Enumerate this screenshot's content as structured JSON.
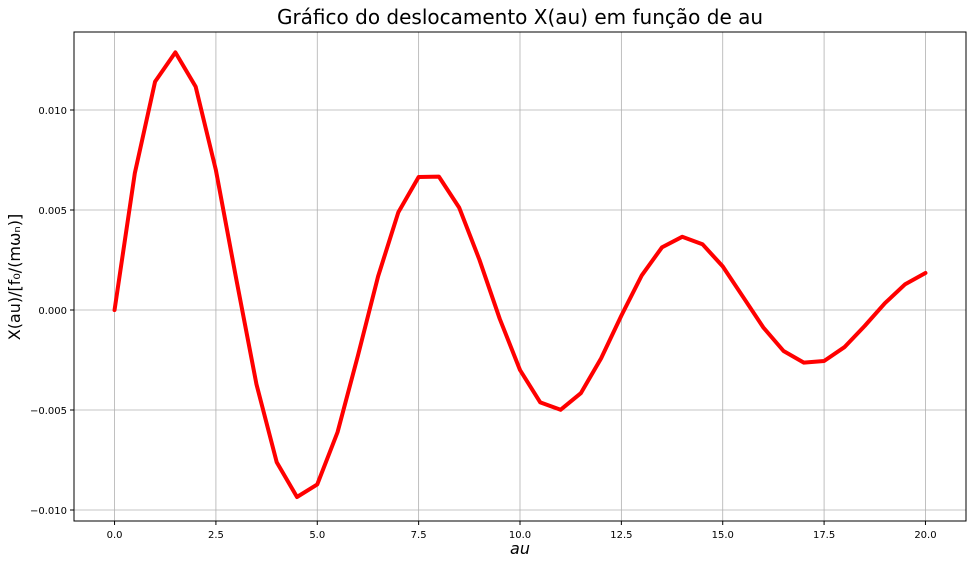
{
  "chart_data": {
    "type": "line",
    "title": "Gráfico do deslocamento X(au) em função de au",
    "xlabel": "au",
    "ylabel": "X(au)/[f₀/(mωₙ)]",
    "x": [
      0,
      0.5,
      1,
      1.5,
      2,
      2.5,
      3,
      3.5,
      4,
      4.5,
      5,
      5.5,
      6,
      6.5,
      7,
      7.5,
      8,
      8.5,
      9,
      9.5,
      10,
      10.5,
      11,
      11.5,
      12,
      12.5,
      13,
      13.5,
      14,
      14.5,
      15,
      15.5,
      16,
      16.5,
      17,
      17.5,
      18,
      18.5,
      19,
      19.5,
      20
    ],
    "series": [
      {
        "color": "#ff0000",
        "values": [
          0,
          0.00684,
          0.01142,
          0.01288,
          0.01117,
          0.00699,
          0.00157,
          -0.00371,
          -0.00761,
          -0.00935,
          -0.00872,
          -0.00611,
          -0.0023,
          0.00168,
          0.00489,
          0.00665,
          0.00667,
          0.00512,
          0.00251,
          -0.00044,
          -0.003,
          -0.00462,
          -0.00499,
          -0.00416,
          -0.00242,
          -0.00028,
          0.00172,
          0.00313,
          0.00366,
          0.00329,
          0.00218,
          0.00066,
          -0.00087,
          -0.00205,
          -0.00263,
          -0.00255,
          -0.00186,
          -0.0008,
          0.00034,
          0.00129,
          0.00185
        ]
      }
    ],
    "xlim": [
      -1.0,
      21.0
    ],
    "ylim": [
      -0.01055,
      0.0139
    ],
    "xticks": [
      {
        "value": 0,
        "label": "0.0"
      },
      2.5,
      {
        "value": 5,
        "label": "5.0"
      },
      7.5,
      {
        "value": 10,
        "label": "10.0"
      },
      12.5,
      {
        "value": 15,
        "label": "15.0"
      },
      17.5,
      {
        "value": 20,
        "label": "20.0"
      }
    ],
    "yticks": [
      {
        "value": -0.01,
        "label": "−0.010"
      },
      {
        "value": -0.005,
        "label": "−0.005"
      },
      {
        "value": 0,
        "label": "0.000"
      },
      0.005,
      {
        "value": 0.01,
        "label": "0.010"
      }
    ],
    "grid": true
  }
}
